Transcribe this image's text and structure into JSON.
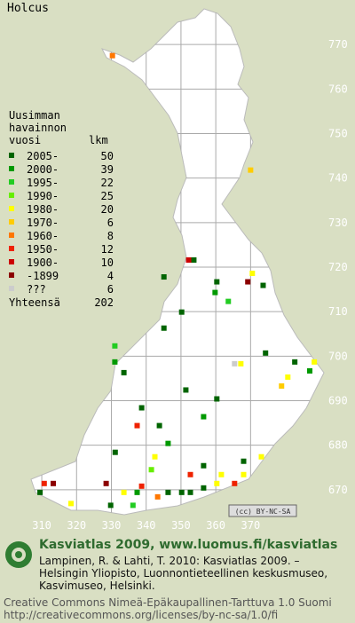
{
  "map": {
    "title": "Holcus",
    "xlim": [
      298,
      400
    ],
    "ylim": [
      660,
      780
    ],
    "xticks": [
      310,
      320,
      330,
      340,
      350,
      360,
      370
    ],
    "yticks": [
      670,
      680,
      690,
      700,
      710,
      720,
      730,
      740,
      750,
      760,
      770
    ],
    "legend": {
      "heading": [
        "Uusimman",
        "havainnon",
        "vuosi"
      ],
      "count_heading": "lkm",
      "items": [
        {
          "label": "2005-",
          "count": 50,
          "color": "#006400",
          "squares": [
            {
              "x": 353.7,
              "y": 721.6
            },
            {
              "x": 373.6,
              "y": 715.9
            },
            {
              "x": 345.1,
              "y": 717.8
            },
            {
              "x": 360.3,
              "y": 716.7
            },
            {
              "x": 350.2,
              "y": 709.9
            },
            {
              "x": 345.1,
              "y": 706.3
            },
            {
              "x": 333.6,
              "y": 696.3
            },
            {
              "x": 374.3,
              "y": 700.7
            },
            {
              "x": 382.7,
              "y": 698.7
            },
            {
              "x": 351.4,
              "y": 692.4
            },
            {
              "x": 360.3,
              "y": 690.4
            },
            {
              "x": 338.7,
              "y": 688.4
            },
            {
              "x": 343.8,
              "y": 684.4
            },
            {
              "x": 331.1,
              "y": 678.4
            },
            {
              "x": 368,
              "y": 676.4
            },
            {
              "x": 309.5,
              "y": 669.4
            },
            {
              "x": 350.2,
              "y": 669.4
            },
            {
              "x": 352.7,
              "y": 669.4
            },
            {
              "x": 346.3,
              "y": 669.4
            },
            {
              "x": 356.5,
              "y": 670.4
            },
            {
              "x": 329.8,
              "y": 666.5
            },
            {
              "x": 356.5,
              "y": 675.4
            }
          ]
        },
        {
          "label": "2000-",
          "count": 39,
          "color": "#009900",
          "squares": [
            {
              "x": 359.8,
              "y": 714.3
            },
            {
              "x": 331,
              "y": 698.7
            },
            {
              "x": 387,
              "y": 696.7
            },
            {
              "x": 356.5,
              "y": 686.4
            },
            {
              "x": 346.3,
              "y": 680.4
            },
            {
              "x": 337.4,
              "y": 669.4
            }
          ]
        },
        {
          "label": "1995-",
          "count": 22,
          "color": "#22cc22",
          "squares": [
            {
              "x": 363.6,
              "y": 712.3
            },
            {
              "x": 336.2,
              "y": 666.5
            },
            {
              "x": 331,
              "y": 702.3
            }
          ]
        },
        {
          "label": "1990-",
          "count": 25,
          "color": "#66ee00",
          "squares": [
            {
              "x": 341.5,
              "y": 674.5
            }
          ]
        },
        {
          "label": "1980-",
          "count": 20,
          "color": "#ffff00",
          "squares": [
            {
              "x": 370.5,
              "y": 718.6
            },
            {
              "x": 367.2,
              "y": 698.3
            },
            {
              "x": 388.3,
              "y": 698.7
            },
            {
              "x": 380.7,
              "y": 695.3
            },
            {
              "x": 342.5,
              "y": 677.4
            },
            {
              "x": 373.1,
              "y": 677.4
            },
            {
              "x": 368,
              "y": 673.4
            },
            {
              "x": 318.4,
              "y": 666.9
            },
            {
              "x": 333.6,
              "y": 669.4
            },
            {
              "x": 360.3,
              "y": 671.4
            },
            {
              "x": 361.6,
              "y": 673.4
            }
          ]
        },
        {
          "label": "1970-",
          "count": 6,
          "color": "#ffcc00",
          "squares": [
            {
              "x": 370,
              "y": 741.8
            },
            {
              "x": 378.9,
              "y": 693.3
            }
          ]
        },
        {
          "label": "1960-",
          "count": 8,
          "color": "#ff7700",
          "squares": [
            {
              "x": 330.3,
              "y": 767.5
            },
            {
              "x": 343.3,
              "y": 668.4
            }
          ]
        },
        {
          "label": "1950-",
          "count": 12,
          "color": "#ee2200",
          "squares": [
            {
              "x": 337.4,
              "y": 684.4
            },
            {
              "x": 365.4,
              "y": 671.4
            },
            {
              "x": 310.7,
              "y": 671.4
            },
            {
              "x": 338.7,
              "y": 670.8
            },
            {
              "x": 352.7,
              "y": 673.4
            }
          ]
        },
        {
          "label": "1900-",
          "count": 10,
          "color": "#cc0000",
          "squares": [
            {
              "x": 352.2,
              "y": 721.6
            }
          ]
        },
        {
          "label": "-1899",
          "count": 4,
          "color": "#8b0000",
          "squares": [
            {
              "x": 369.2,
              "y": 716.7
            },
            {
              "x": 313.3,
              "y": 671.4
            },
            {
              "x": 328.5,
              "y": 671.4
            }
          ]
        },
        {
          "label": "???",
          "count": 6,
          "color": "#cccccc",
          "squares": [
            {
              "x": 365.4,
              "y": 698.3
            }
          ]
        }
      ],
      "total_label": "Yhteensä",
      "total": 202
    },
    "license_badge": "(cc) BY-NC-SA"
  },
  "footer": {
    "heading": "Kasviatlas 2009, www.luomus.fi/kasviatlas",
    "citation": [
      "Lampinen, R. & Lahti, T. 2010: Kasviatlas 2009. –",
      "Helsingin Yliopisto, Luonnontieteellinen keskusmuseo,",
      "Kasvimuseo, Helsinki."
    ],
    "license": [
      "Creative Commons Nimeä-Epäkaupallinen-Tarttuva 1.0 Suomi",
      "http://creativecommons.org/licenses/by-nc-sa/1.0/fi"
    ]
  }
}
